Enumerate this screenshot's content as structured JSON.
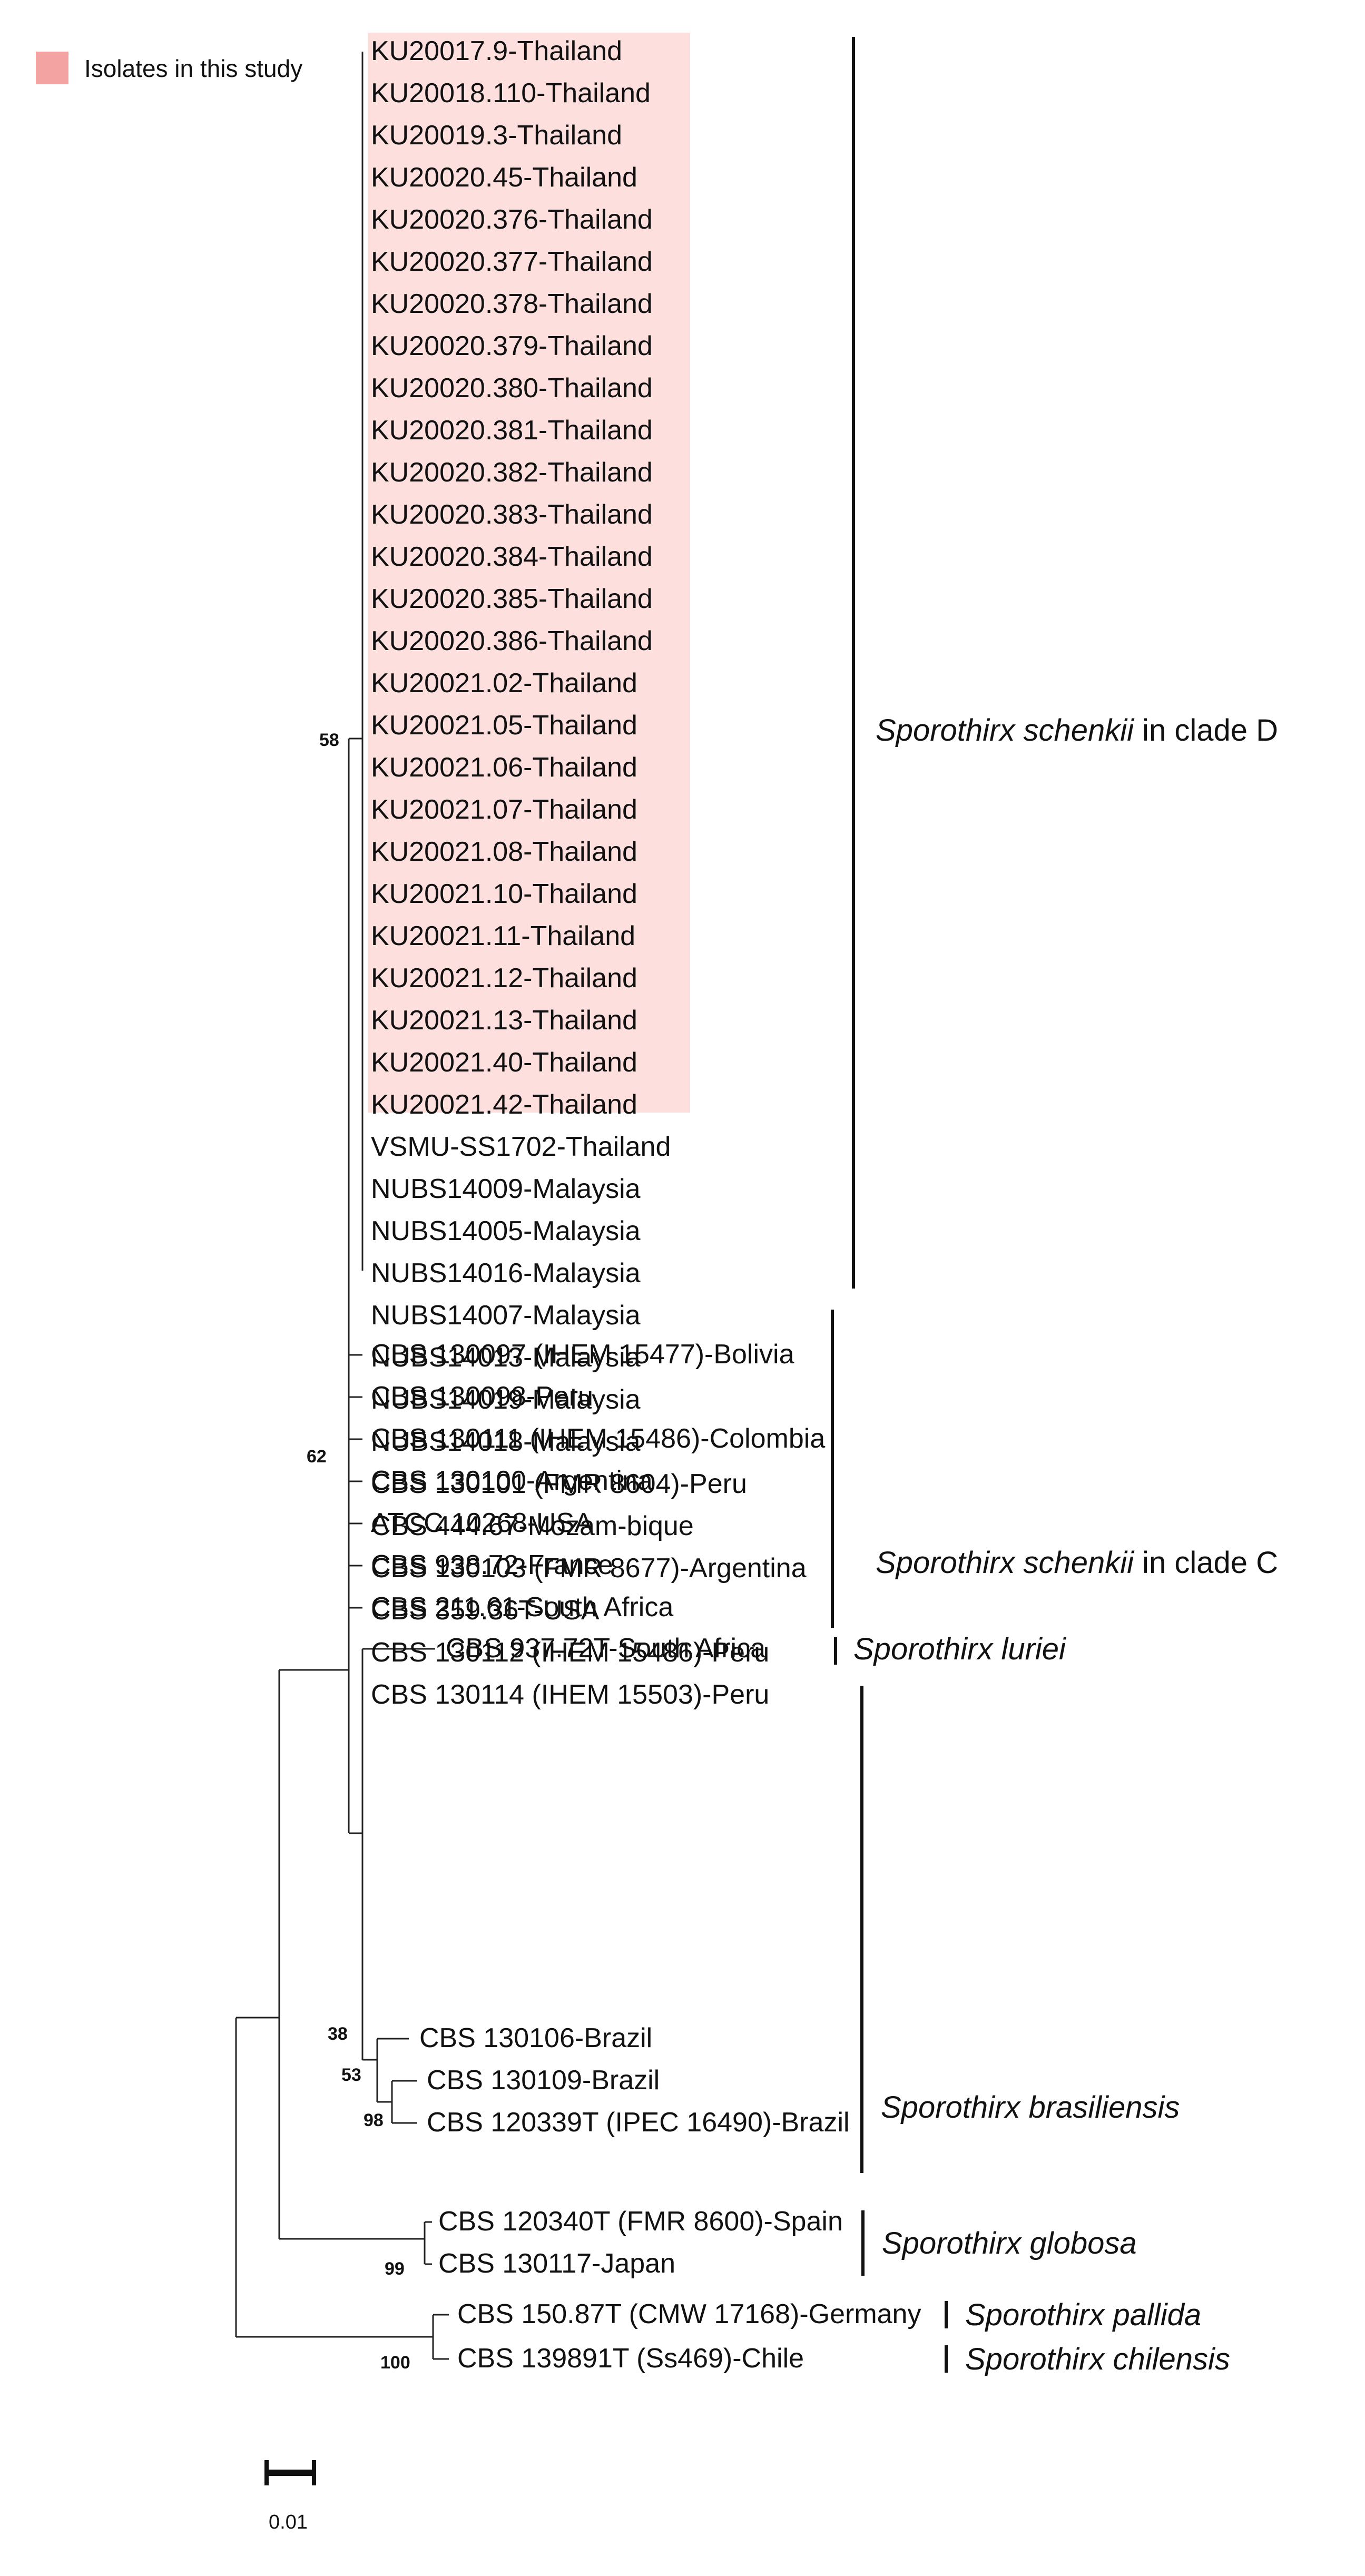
{
  "legend": {
    "label": "Isolates in this study",
    "color": "#f4a3a3"
  },
  "highlight_color": "#fde0de",
  "leaves": [
    "KU20017.9-Thailand",
    "KU20018.110-Thailand",
    "KU20019.3-Thailand",
    "KU20020.45-Thailand",
    "KU20020.376-Thailand",
    "KU20020.377-Thailand",
    "KU20020.378-Thailand",
    "KU20020.379-Thailand",
    "KU20020.380-Thailand",
    "KU20020.381-Thailand",
    "KU20020.382-Thailand",
    "KU20020.383-Thailand",
    "KU20020.384-Thailand",
    "KU20020.385-Thailand",
    "KU20020.386-Thailand",
    "KU20021.02-Thailand",
    "KU20021.05-Thailand",
    "KU20021.06-Thailand",
    "KU20021.07-Thailand",
    "KU20021.08-Thailand",
    "KU20021.10-Thailand",
    "KU20021.11-Thailand",
    "KU20021.12-Thailand",
    "KU20021.13-Thailand",
    "KU20021.40-Thailand",
    "KU20021.42-Thailand",
    "VSMU-SS1702-Thailand",
    "NUBS14009-Malaysia",
    "NUBS14005-Malaysia",
    "NUBS14016-Malaysia",
    "NUBS14007-Malaysia",
    "NUBS14013-Malaysia",
    "NUBS14019-Malaysia",
    "NUBS14018-Malaysia",
    "CBS 130101 (FMR 8604)-Peru",
    "CBS 444.67-Mozam-bique",
    "CBS 130103 (FMR 8677)-Argentina",
    "CBS 359.36T-USA",
    "CBS 130112 (IHEM 15486)-Peru",
    "CBS 130114 (IHEM 15503)-Peru",
    "CBS 130097 (IHEM 15477)-Bolivia",
    "CBS 130098-Peru",
    "CBS 130111 (IHEM 15486)-Colombia",
    "CBS 130100-Argentina",
    "ATCC 10268-USA",
    "CBS 938.72-France",
    "CBS 211.61-South Africa",
    "CBS 937.72T-South Africa",
    "CBS 130106-Brazil",
    "CBS 130109-Brazil",
    "CBS 120339T (IPEC 16490)-Brazil",
    "CBS 120340T (FMR 8600)-Spain",
    "CBS 130117-Japan",
    "CBS 150.87T (CMW 17168)-Germany",
    "CBS 139891T (Ss469)-Chile"
  ],
  "bootstrap": [
    "58",
    "62",
    "38",
    "53",
    "98",
    "99",
    "100"
  ],
  "clades": [
    {
      "genus": "Sporothirx schenkii",
      "suffix": " in clade D"
    },
    {
      "genus": "Sporothirx schenkii",
      "suffix": " in clade C"
    },
    {
      "genus": "Sporothirx luriei",
      "suffix": ""
    },
    {
      "genus": "Sporothirx brasiliensis",
      "suffix": ""
    },
    {
      "genus": "Sporothirx globosa",
      "suffix": ""
    },
    {
      "genus": "Sporothirx pallida",
      "suffix": ""
    },
    {
      "genus": "Sporothirx chilensis",
      "suffix": ""
    }
  ],
  "scale": {
    "label": "0.01",
    "value": 0.01
  }
}
